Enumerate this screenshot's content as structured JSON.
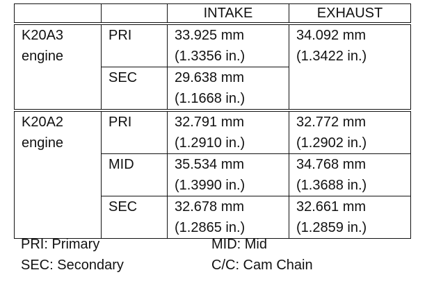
{
  "table": {
    "columns": [
      "INTAKE",
      "EXHAUST"
    ],
    "groups": [
      {
        "engine": [
          "K20A3",
          "engine"
        ],
        "rows": [
          {
            "position": "PRI",
            "intake": [
              "33.925 mm",
              "(1.3356 in.)"
            ],
            "exhaust": [
              "34.092 mm",
              "(1.3422 in.)"
            ]
          },
          {
            "position": "SEC",
            "intake": [
              "29.638 mm",
              "(1.1668 in.)"
            ]
          }
        ]
      },
      {
        "engine": [
          "K20A2",
          "engine"
        ],
        "rows": [
          {
            "position": "PRI",
            "intake": [
              "32.791 mm",
              "(1.2910 in.)"
            ],
            "exhaust": [
              "32.772 mm",
              "(1.2902 in.)"
            ]
          },
          {
            "position": "MID",
            "intake": [
              "35.534 mm",
              "(1.3990 in.)"
            ],
            "exhaust": [
              "34.768 mm",
              "(1.3688 in.)"
            ]
          },
          {
            "position": "SEC",
            "intake": [
              "32.678 mm",
              "(1.2865 in.)"
            ],
            "exhaust": [
              "32.661 mm",
              "(1.2859 in.)"
            ]
          }
        ]
      }
    ]
  },
  "legend": [
    [
      "PRI: Primary",
      "MID: Mid"
    ],
    [
      "SEC: Secondary",
      "C/C: Cam Chain"
    ]
  ]
}
